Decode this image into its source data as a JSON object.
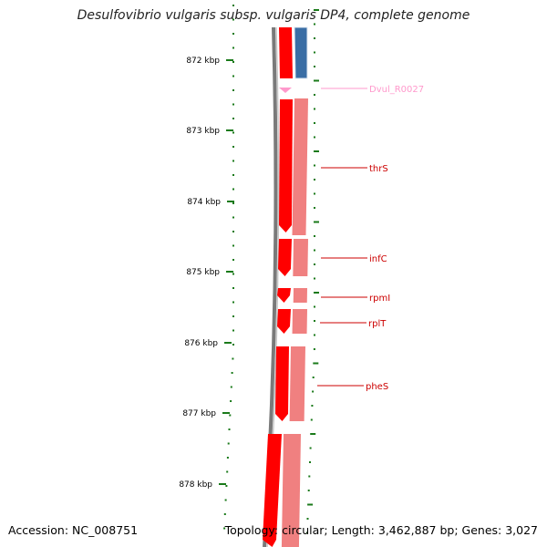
{
  "title": "Desulfovibrio vulgaris subsp. vulgaris DP4, complete genome",
  "accession": "Accession: NC_008751",
  "topology": "Topology: circular; Length: 3,462,887 bp; Genes: 3,027",
  "colors": {
    "backbone": "#7a7a7a",
    "cds": "#ff0000",
    "cds_light": "#f08080",
    "rna": "#ff99cc",
    "other_strand": "#3a6ea5",
    "ticks": "#1a7a1a"
  },
  "ruler": {
    "unit": "kbp",
    "labels": [
      "872 kbp",
      "873 kbp",
      "874 kbp",
      "875 kbp",
      "876 kbp",
      "877 kbp",
      "878 kbp"
    ]
  },
  "genes": [
    {
      "name": "Dvul_R0027",
      "type": "rna"
    },
    {
      "name": "thrS",
      "type": "cds"
    },
    {
      "name": "infC",
      "type": "cds"
    },
    {
      "name": "rpmI",
      "type": "cds"
    },
    {
      "name": "rplT",
      "type": "cds"
    },
    {
      "name": "pheS",
      "type": "cds"
    }
  ]
}
